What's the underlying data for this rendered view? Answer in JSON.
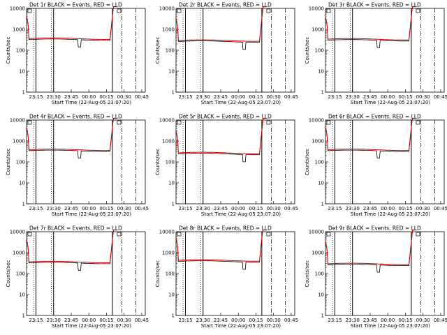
{
  "chart_data": {
    "type": "line",
    "ylabel": "Counts/sec",
    "xlabel": "Start Time (22-Aug-05 23:07:20)",
    "yscale": "log",
    "ylim": [
      1,
      10000
    ],
    "y_tick_labels": [
      "1",
      "10",
      "100",
      "1000",
      "10000"
    ],
    "x_tick_labels": [
      "23:15",
      "23:30",
      "23:45",
      "00:00",
      "00:15",
      "00:30",
      "00:45"
    ],
    "series_names": [
      "Events",
      "LLD"
    ],
    "series_colors": {
      "events": "#000000",
      "lld": "#cc0000"
    },
    "panels": [
      {
        "title": "Det 1r  BLACK = Events, RED = LLD",
        "dip": "23:52",
        "level": 320
      },
      {
        "title": "Det 2r  BLACK = Events, RED = LLD",
        "dip": "00:05",
        "level": 260
      },
      {
        "title": "Det 3r  BLACK = Events, RED = LLD",
        "dip": "23:52",
        "level": 300
      },
      {
        "title": "Det 4r  BLACK = Events, RED = LLD",
        "dip": "23:52",
        "level": 340
      },
      {
        "title": "Det 5r  BLACK = Events, RED = LLD",
        "dip": "00:05",
        "level": 240
      },
      {
        "title": "Det 6r  BLACK = Events, RED = LLD",
        "dip": "23:52",
        "level": 340
      },
      {
        "title": "Det 7r  BLACK = Events, RED = LLD",
        "dip": "23:52",
        "level": 320
      },
      {
        "title": "Det 8r  BLACK = Events, RED = LLD",
        "dip": "00:05",
        "level": 380
      },
      {
        "title": "Det 9r  BLACK = Events, RED = LLD",
        "dip": "23:52",
        "level": 260
      }
    ]
  }
}
